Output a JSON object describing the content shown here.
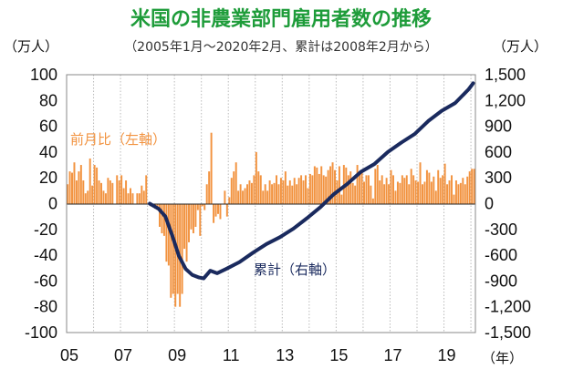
{
  "chart_data": {
    "type": "bar+line",
    "title": "米国の非農業部門雇用者数の推移",
    "subtitle": "（2005年1月～2020年2月、累計は2008年2月から）",
    "left_unit": "（万人）",
    "right_unit": "（万人）",
    "x_unit": "（年）",
    "left_axis": {
      "ylim": [
        -100,
        100
      ],
      "ticks": [
        "100",
        "80",
        "60",
        "40",
        "20",
        "0",
        "-20",
        "-40",
        "-60",
        "-80",
        "-100"
      ]
    },
    "right_axis": {
      "ylim": [
        -1500,
        1500
      ],
      "ticks": [
        "1,500",
        "1,200",
        "900",
        "600",
        "300",
        "0",
        "-300",
        "-600",
        "-900",
        "-1,200",
        "-1,500"
      ]
    },
    "x_ticks": [
      "05",
      "07",
      "09",
      "11",
      "13",
      "15",
      "17",
      "19"
    ],
    "x_range": [
      "2005-01",
      "2020-02"
    ],
    "grid": "vertical dotted",
    "bar_series": {
      "name": "前月比（左軸）",
      "axis": "left",
      "color": "#f29340",
      "monthly_values": [
        15,
        25,
        24,
        32,
        18,
        25,
        30,
        18,
        8,
        10,
        35,
        14,
        30,
        28,
        18,
        16,
        10,
        8,
        20,
        18,
        16,
        0,
        22,
        18,
        22,
        12,
        18,
        8,
        12,
        8,
        0,
        8,
        8,
        14,
        10,
        22,
        0,
        -2,
        0,
        -4,
        -5,
        -18,
        -23,
        -25,
        -45,
        -48,
        -73,
        -70,
        -80,
        -70,
        -80,
        -70,
        -35,
        -45,
        -30,
        -20,
        -23,
        -18,
        -5,
        -25,
        -2,
        -5,
        15,
        25,
        55,
        -15,
        -10,
        -8,
        -12,
        0,
        10,
        -10,
        5,
        20,
        25,
        32,
        10,
        15,
        10,
        12,
        15,
        18,
        16,
        22,
        40,
        25,
        22,
        10,
        15,
        10,
        18,
        15,
        16,
        22,
        15,
        20,
        18,
        25,
        14,
        18,
        14,
        20,
        15,
        20,
        22,
        18,
        22,
        12,
        23,
        22,
        29,
        28,
        23,
        29,
        22,
        21,
        26,
        29,
        32,
        26,
        18,
        29,
        7,
        30,
        28,
        22,
        25,
        16,
        14,
        30,
        25,
        26,
        17,
        22,
        22,
        14,
        4,
        27,
        30,
        18,
        22,
        15,
        20,
        15,
        26,
        22,
        10,
        17,
        16,
        22,
        20,
        22,
        15,
        27,
        22,
        18,
        17,
        32,
        15,
        17,
        26,
        24,
        17,
        21,
        10,
        26,
        20,
        22,
        31,
        15,
        18,
        22,
        7,
        18,
        15,
        16,
        20,
        15,
        21,
        25,
        27,
        27
      ]
    },
    "line_series": {
      "name": "累計（右軸）",
      "axis": "right",
      "color": "#1a2a5e",
      "start": "2008-02",
      "points": [
        [
          "2008-02",
          0
        ],
        [
          "2008-06",
          -60
        ],
        [
          "2008-09",
          -150
        ],
        [
          "2008-12",
          -370
        ],
        [
          "2009-03",
          -610
        ],
        [
          "2009-06",
          -760
        ],
        [
          "2009-09",
          -830
        ],
        [
          "2009-12",
          -860
        ],
        [
          "2010-02",
          -870
        ],
        [
          "2010-05",
          -780
        ],
        [
          "2010-08",
          -810
        ],
        [
          "2010-12",
          -760
        ],
        [
          "2011-06",
          -680
        ],
        [
          "2011-12",
          -570
        ],
        [
          "2012-06",
          -470
        ],
        [
          "2012-12",
          -390
        ],
        [
          "2013-06",
          -290
        ],
        [
          "2013-12",
          -170
        ],
        [
          "2014-06",
          -40
        ],
        [
          "2014-12",
          110
        ],
        [
          "2015-06",
          230
        ],
        [
          "2015-12",
          370
        ],
        [
          "2016-06",
          460
        ],
        [
          "2016-12",
          600
        ],
        [
          "2017-06",
          710
        ],
        [
          "2017-12",
          810
        ],
        [
          "2018-06",
          960
        ],
        [
          "2018-12",
          1080
        ],
        [
          "2019-06",
          1170
        ],
        [
          "2019-12",
          1330
        ],
        [
          "2020-02",
          1400
        ]
      ]
    }
  }
}
